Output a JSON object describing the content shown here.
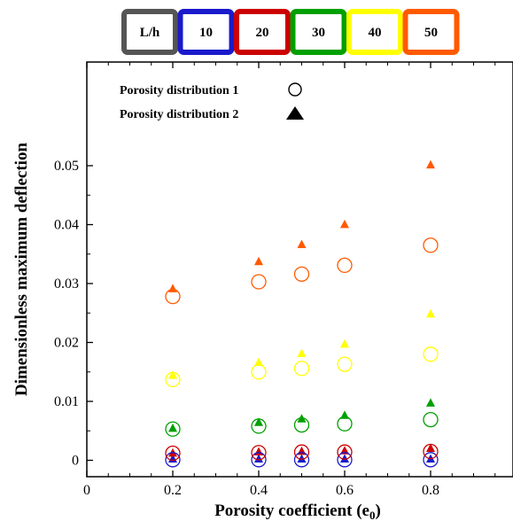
{
  "chart_data": {
    "type": "scatter",
    "xlabel": "Porosity coefficient (e",
    "xlabel_sub": "0",
    "xlabel_close": ")",
    "ylabel": "Dimensionless maximum deflection",
    "xlim": [
      0,
      1
    ],
    "ylim": [
      -0.0015,
      0.0545
    ],
    "xticks": [
      0,
      0.2,
      0.4,
      0.6,
      0.8
    ],
    "xtick_labels": [
      "0",
      "0.2",
      "0.4",
      "0.6",
      "0.8"
    ],
    "yticks": [
      0,
      0.01,
      0.02,
      0.03,
      0.04,
      0.05
    ],
    "ytick_labels": [
      "0",
      "0.01",
      "0.02",
      "0.03",
      "0.04",
      "0.05"
    ],
    "grid": false,
    "x": [
      0.2,
      0.4,
      0.5,
      0.6,
      0.8
    ],
    "length_ratio_header": "L/h",
    "length_ratios": [
      {
        "label": "10",
        "color": "#1a1acc"
      },
      {
        "label": "20",
        "color": "#cc0000"
      },
      {
        "label": "30",
        "color": "#00a000"
      },
      {
        "label": "40",
        "color": "#ffff00"
      },
      {
        "label": "50",
        "color": "#ff5a00"
      }
    ],
    "header_color": "#555555",
    "marker_legend": [
      {
        "label": "Porosity distribution 1",
        "marker": "circle"
      },
      {
        "label": "Porosity distribution 2",
        "marker": "triangle"
      }
    ],
    "series": [
      {
        "ratio": "10",
        "distribution": 1,
        "values": [
          0.0001,
          0.0001,
          0.0001,
          0.0001,
          0.0001
        ]
      },
      {
        "ratio": "10",
        "distribution": 2,
        "values": [
          0.0003,
          0.0003,
          0.0003,
          0.0003,
          0.0003
        ]
      },
      {
        "ratio": "20",
        "distribution": 1,
        "values": [
          0.0012,
          0.0013,
          0.0014,
          0.0014,
          0.0015
        ]
      },
      {
        "ratio": "20",
        "distribution": 2,
        "values": [
          0.0013,
          0.0015,
          0.0016,
          0.0017,
          0.0021
        ]
      },
      {
        "ratio": "30",
        "distribution": 1,
        "values": [
          0.0053,
          0.0058,
          0.006,
          0.0062,
          0.0069
        ]
      },
      {
        "ratio": "30",
        "distribution": 2,
        "values": [
          0.0055,
          0.0065,
          0.0071,
          0.0077,
          0.0098
        ]
      },
      {
        "ratio": "40",
        "distribution": 1,
        "values": [
          0.0137,
          0.015,
          0.0156,
          0.0163,
          0.018
        ]
      },
      {
        "ratio": "40",
        "distribution": 2,
        "values": [
          0.0145,
          0.0167,
          0.0182,
          0.0198,
          0.0249
        ]
      },
      {
        "ratio": "50",
        "distribution": 1,
        "values": [
          0.0278,
          0.0303,
          0.0316,
          0.0331,
          0.0365
        ]
      },
      {
        "ratio": "50",
        "distribution": 2,
        "values": [
          0.0292,
          0.0338,
          0.0367,
          0.0401,
          0.0502
        ]
      }
    ]
  }
}
